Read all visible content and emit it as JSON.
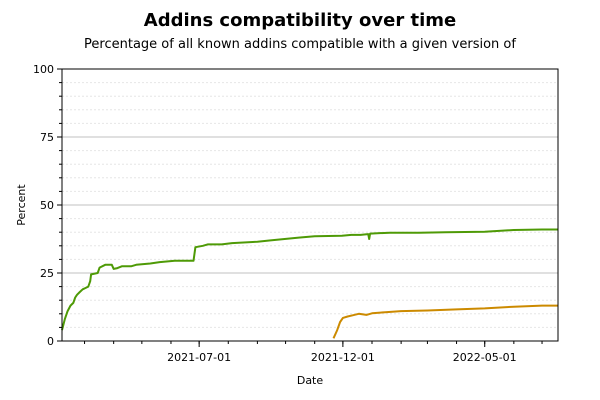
{
  "chart_data": {
    "type": "line",
    "title": "Addins compatibility over time",
    "subtitle": "Percentage of all known addins compatible with a given version of",
    "xlabel": "Date",
    "ylabel": "Percent",
    "xlim": [
      "2021-02-05",
      "2022-07-18"
    ],
    "ylim": [
      0,
      100
    ],
    "yticks": [
      0,
      25,
      50,
      75,
      100
    ],
    "xticks": [
      "2021-07-01",
      "2021-12-01",
      "2022-05-01"
    ],
    "grid": true,
    "legend": "none",
    "series": [
      {
        "color": "#4e9a06",
        "points": [
          [
            "2021-02-05",
            4
          ],
          [
            "2021-02-08",
            8
          ],
          [
            "2021-02-11",
            11
          ],
          [
            "2021-02-14",
            13
          ],
          [
            "2021-02-17",
            14
          ],
          [
            "2021-02-19",
            16
          ],
          [
            "2021-02-21",
            17
          ],
          [
            "2021-02-24",
            18
          ],
          [
            "2021-02-27",
            19
          ],
          [
            "2021-03-02",
            19.5
          ],
          [
            "2021-03-05",
            20
          ],
          [
            "2021-03-07",
            22
          ],
          [
            "2021-03-08",
            24.5
          ],
          [
            "2021-03-15",
            25
          ],
          [
            "2021-03-17",
            27
          ],
          [
            "2021-03-23",
            28
          ],
          [
            "2021-03-30",
            28
          ],
          [
            "2021-04-01",
            26.5
          ],
          [
            "2021-04-05",
            26.8
          ],
          [
            "2021-04-10",
            27.5
          ],
          [
            "2021-04-20",
            27.5
          ],
          [
            "2021-04-25",
            28
          ],
          [
            "2021-05-10",
            28.5
          ],
          [
            "2021-05-20",
            29
          ],
          [
            "2021-06-05",
            29.5
          ],
          [
            "2021-06-25",
            29.5
          ],
          [
            "2021-06-27",
            34.5
          ],
          [
            "2021-07-05",
            35
          ],
          [
            "2021-07-10",
            35.5
          ],
          [
            "2021-07-25",
            35.5
          ],
          [
            "2021-08-05",
            36
          ],
          [
            "2021-09-01",
            36.5
          ],
          [
            "2021-09-15",
            37
          ],
          [
            "2021-10-15",
            38
          ],
          [
            "2021-11-01",
            38.5
          ],
          [
            "2021-11-30",
            38.7
          ],
          [
            "2021-12-10",
            39
          ],
          [
            "2021-12-20",
            39
          ],
          [
            "2021-12-25",
            39.2
          ],
          [
            "2021-12-28",
            39.3
          ],
          [
            "2021-12-29",
            37.5
          ],
          [
            "2021-12-30",
            39.5
          ],
          [
            "2022-01-20",
            39.8
          ],
          [
            "2022-02-20",
            39.8
          ],
          [
            "2022-03-20",
            40
          ],
          [
            "2022-05-01",
            40.2
          ],
          [
            "2022-06-01",
            40.8
          ],
          [
            "2022-07-01",
            41
          ],
          [
            "2022-07-18",
            41
          ]
        ]
      },
      {
        "color": "#cc8a00",
        "points": [
          [
            "2021-11-21",
            1
          ],
          [
            "2021-11-25",
            4
          ],
          [
            "2021-11-28",
            7
          ],
          [
            "2021-12-01",
            8.5
          ],
          [
            "2021-12-06",
            9
          ],
          [
            "2021-12-12",
            9.5
          ],
          [
            "2021-12-18",
            10
          ],
          [
            "2021-12-26",
            9.6
          ],
          [
            "2022-01-01",
            10.2
          ],
          [
            "2022-01-15",
            10.6
          ],
          [
            "2022-02-01",
            11
          ],
          [
            "2022-03-01",
            11.2
          ],
          [
            "2022-04-01",
            11.6
          ],
          [
            "2022-05-01",
            12
          ],
          [
            "2022-06-01",
            12.6
          ],
          [
            "2022-07-01",
            13
          ],
          [
            "2022-07-18",
            13
          ]
        ]
      }
    ]
  }
}
